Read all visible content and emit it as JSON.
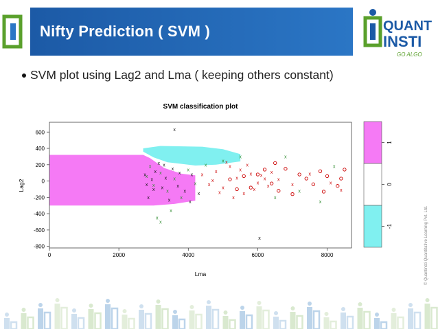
{
  "slide": {
    "title": "Nifty Prediction ( SVM )",
    "bullet": "SVM plot using Lag2 and Lma ( keeping others constant)",
    "logo_text_top": "QUANT",
    "logo_text_bottom": "INSTI",
    "logo_tagline": "GO ALGO",
    "copyright": "© Quantinsti Quantitative Learning Pvt. Ltd.",
    "colors": {
      "title_bar": "#1c5aa6",
      "logo_green": "#5aa02c",
      "logo_blue": "#1c5aa6",
      "class_pos": "#f57af5",
      "class_neg": "#80f0f0",
      "class_zero": "#ffffff",
      "points_red": "#cc0000",
      "points_green": "#2e8b2e",
      "points_black": "#111111"
    }
  },
  "chart_data": {
    "type": "scatter",
    "title": "SVM classification plot",
    "xlabel": "Lma",
    "ylabel": "Lag2",
    "xlim": [
      0,
      8700
    ],
    "ylim": [
      -820,
      720
    ],
    "xticks": [
      "0",
      "2000",
      "4000",
      "6000",
      "8000"
    ],
    "yticks": [
      "600",
      "400",
      "200",
      "0",
      "-200",
      "-400",
      "-600",
      "-800"
    ],
    "legend_labels": [
      "1",
      "0",
      "-1"
    ],
    "regions": [
      {
        "class": "1",
        "polygon": [
          [
            0,
            320
          ],
          [
            2700,
            320
          ],
          [
            2900,
            280
          ],
          [
            3300,
            160
          ],
          [
            3800,
            90
          ],
          [
            4200,
            70
          ],
          [
            4200,
            -240
          ],
          [
            3600,
            -280
          ],
          [
            3000,
            -300
          ],
          [
            2700,
            -300
          ],
          [
            0,
            -300
          ]
        ]
      },
      {
        "class": "-1",
        "polygon": [
          [
            2700,
            360
          ],
          [
            2700,
            400
          ],
          [
            3200,
            430
          ],
          [
            4400,
            420
          ],
          [
            5000,
            390
          ],
          [
            5500,
            330
          ],
          [
            5500,
            240
          ],
          [
            4800,
            200
          ],
          [
            4200,
            190
          ],
          [
            3400,
            230
          ],
          [
            3000,
            290
          ]
        ]
      }
    ],
    "series": [
      {
        "color": "red",
        "marker": "o",
        "points": [
          [
            5200,
            20
          ],
          [
            5600,
            60
          ],
          [
            6000,
            80
          ],
          [
            6400,
            -30
          ],
          [
            6800,
            150
          ],
          [
            7200,
            80
          ],
          [
            7600,
            -40
          ],
          [
            8000,
            60
          ],
          [
            8300,
            -60
          ],
          [
            6600,
            -120
          ],
          [
            7000,
            -160
          ],
          [
            7800,
            120
          ],
          [
            8400,
            30
          ],
          [
            5800,
            -80
          ],
          [
            6200,
            140
          ],
          [
            5400,
            -100
          ],
          [
            7400,
            30
          ],
          [
            7900,
            -130
          ],
          [
            6500,
            220
          ],
          [
            8500,
            140
          ]
        ]
      },
      {
        "color": "red",
        "marker": "x",
        "points": [
          [
            4400,
            80
          ],
          [
            4600,
            -40
          ],
          [
            4800,
            120
          ],
          [
            5000,
            -80
          ],
          [
            5200,
            180
          ],
          [
            5400,
            40
          ],
          [
            5600,
            -150
          ],
          [
            5800,
            90
          ],
          [
            6000,
            -20
          ],
          [
            6200,
            30
          ],
          [
            6400,
            110
          ],
          [
            4700,
            10
          ],
          [
            5100,
            230
          ],
          [
            5300,
            -200
          ],
          [
            5500,
            140
          ],
          [
            5700,
            200
          ],
          [
            5900,
            -100
          ],
          [
            6100,
            70
          ],
          [
            6300,
            -60
          ],
          [
            4900,
            -140
          ],
          [
            6600,
            20
          ],
          [
            7000,
            -40
          ],
          [
            7500,
            90
          ],
          [
            8100,
            -20
          ],
          [
            8400,
            -110
          ]
        ]
      },
      {
        "color": "green",
        "marker": "x",
        "points": [
          [
            2800,
            60
          ],
          [
            3000,
            -50
          ],
          [
            3200,
            100
          ],
          [
            3400,
            -120
          ],
          [
            3600,
            30
          ],
          [
            3800,
            -200
          ],
          [
            4000,
            140
          ],
          [
            4200,
            -30
          ],
          [
            4500,
            200
          ],
          [
            5000,
            250
          ],
          [
            5500,
            300
          ],
          [
            6500,
            -200
          ],
          [
            7200,
            -120
          ],
          [
            8200,
            180
          ],
          [
            3100,
            -450
          ],
          [
            3500,
            -360
          ],
          [
            3200,
            -500
          ],
          [
            2900,
            180
          ],
          [
            6800,
            300
          ],
          [
            7800,
            -250
          ]
        ]
      },
      {
        "color": "black",
        "marker": "x",
        "points": [
          [
            2800,
            -40
          ],
          [
            2950,
            20
          ],
          [
            3050,
            120
          ],
          [
            3250,
            -80
          ],
          [
            3350,
            40
          ],
          [
            3550,
            150
          ],
          [
            3700,
            -60
          ],
          [
            3900,
            -120
          ],
          [
            4100,
            80
          ],
          [
            4300,
            -150
          ],
          [
            3600,
            630
          ],
          [
            6050,
            -700
          ],
          [
            2850,
            -200
          ],
          [
            3150,
            220
          ],
          [
            3450,
            -230
          ],
          [
            3750,
            100
          ],
          [
            4050,
            -250
          ],
          [
            3000,
            -100
          ],
          [
            3300,
            200
          ],
          [
            2750,
            80
          ]
        ]
      }
    ]
  }
}
